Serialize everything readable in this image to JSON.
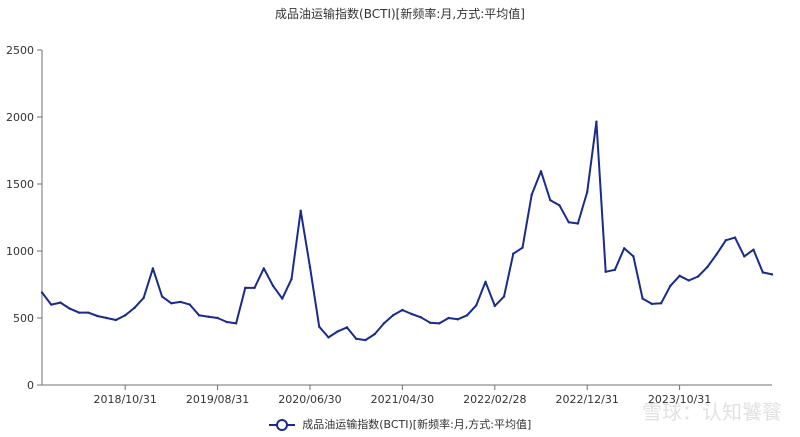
{
  "chart_data": {
    "type": "line",
    "title": "成品油运输指数(BCTI)[新频率:月,方式:平均值]",
    "xlabel": "",
    "ylabel": "",
    "ylim": [
      0,
      2500
    ],
    "yticks": [
      0,
      500,
      1000,
      1500,
      2000,
      2500
    ],
    "x_tick_labels": [
      "2018/10/31",
      "2019/08/31",
      "2020/06/30",
      "2021/04/30",
      "2022/02/28",
      "2022/12/31",
      "2023/10/31"
    ],
    "x_tick_indices": [
      9,
      19,
      29,
      39,
      49,
      59,
      69
    ],
    "legend": {
      "position": "bottom",
      "entries": [
        "成品油运输指数(BCTI)[新频率:月,方式:平均值]"
      ]
    },
    "grid": false,
    "series": [
      {
        "name": "成品油运输指数(BCTI)[新频率:月,方式:平均值]",
        "color": "#1a2b8c",
        "values": [
          690,
          600,
          615,
          570,
          540,
          540,
          515,
          500,
          485,
          520,
          575,
          650,
          870,
          660,
          610,
          620,
          600,
          520,
          510,
          500,
          470,
          460,
          725,
          725,
          870,
          740,
          645,
          790,
          1300,
          880,
          435,
          355,
          400,
          430,
          345,
          335,
          380,
          460,
          520,
          560,
          530,
          505,
          465,
          460,
          500,
          490,
          520,
          595,
          770,
          590,
          660,
          980,
          1025,
          1420,
          1595,
          1380,
          1340,
          1215,
          1205,
          1440,
          1965,
          845,
          860,
          1020,
          960,
          645,
          605,
          610,
          740,
          815,
          780,
          810,
          880,
          975,
          1080,
          1100,
          960,
          1010,
          840,
          825
        ]
      }
    ]
  },
  "watermark": "雪球：认知饕餮"
}
